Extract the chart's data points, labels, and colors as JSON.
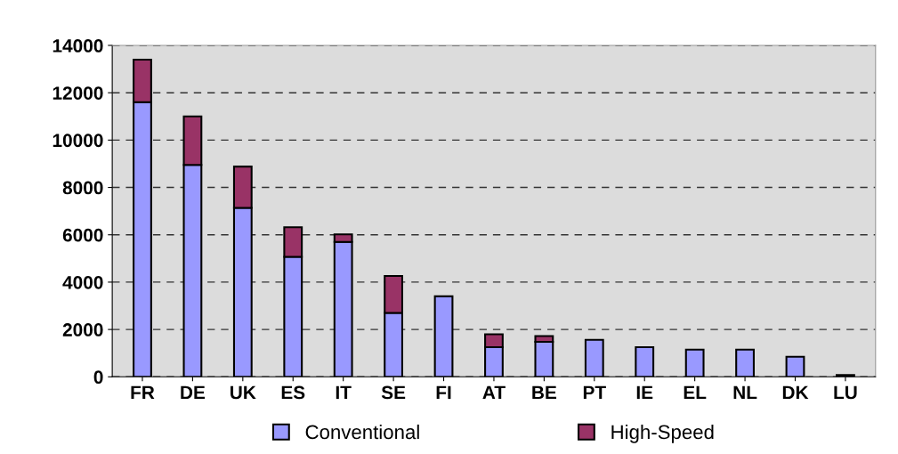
{
  "chart_data": {
    "type": "bar",
    "stacked": true,
    "categories": [
      "FR",
      "DE",
      "UK",
      "ES",
      "IT",
      "SE",
      "FI",
      "AT",
      "BE",
      "PT",
      "IE",
      "EL",
      "NL",
      "DK",
      "LU"
    ],
    "series": [
      {
        "name": "Conventional",
        "color": "#9999ff",
        "values": [
          11600,
          8950,
          7140,
          5070,
          5700,
          2700,
          3400,
          1250,
          1480,
          1560,
          1250,
          1150,
          1150,
          850,
          80
        ]
      },
      {
        "name": "High-Speed",
        "color": "#993366",
        "values": [
          1800,
          2050,
          1740,
          1250,
          320,
          1560,
          0,
          550,
          240,
          0,
          0,
          0,
          0,
          0,
          0
        ]
      }
    ],
    "ylim": [
      0,
      14000
    ],
    "yticks": [
      0,
      2000,
      4000,
      6000,
      8000,
      10000,
      12000,
      14000
    ],
    "grid": "y",
    "legend": "bottom"
  }
}
